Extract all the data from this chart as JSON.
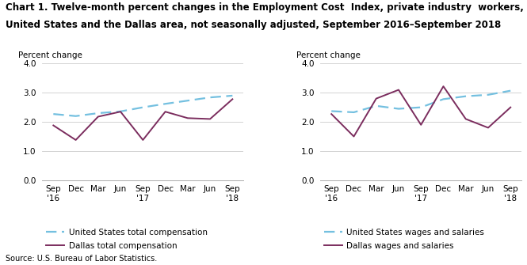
{
  "title_line1": "Chart 1. Twelve-month percent changes in the Employment Cost  Index, private industry  workers,",
  "title_line2": "United States and the Dallas area, not seasonally adjusted, September 2016–September 2018",
  "source": "Source: U.S. Bureau of Labor Statistics.",
  "ylabel": "Percent change",
  "chart1": {
    "us_total_comp": [
      2.27,
      2.2,
      2.3,
      2.36,
      2.5,
      2.62,
      2.73,
      2.84,
      2.9
    ],
    "dallas_total_comp": [
      1.88,
      1.38,
      2.18,
      2.35,
      1.38,
      2.35,
      2.13,
      2.1,
      2.78
    ],
    "legend1": "United States total compensation",
    "legend2": "Dallas total compensation"
  },
  "chart2": {
    "us_wages_salaries": [
      2.37,
      2.33,
      2.55,
      2.45,
      2.5,
      2.78,
      2.88,
      2.93,
      3.07
    ],
    "dallas_wages_salaries": [
      2.27,
      1.5,
      2.8,
      3.1,
      1.9,
      3.22,
      2.1,
      1.8,
      2.5
    ],
    "legend1": "United States wages and salaries",
    "legend2": "Dallas wages and salaries"
  },
  "us_color": "#74C0E0",
  "dallas_color": "#7B2D5E",
  "ylim": [
    0.0,
    4.0
  ],
  "yticks": [
    0.0,
    1.0,
    2.0,
    3.0,
    4.0
  ],
  "grid_color": "#CCCCCC",
  "title_fontsize": 8.5,
  "axis_fontsize": 7.5,
  "legend_fontsize": 7.5,
  "source_fontsize": 7.0
}
